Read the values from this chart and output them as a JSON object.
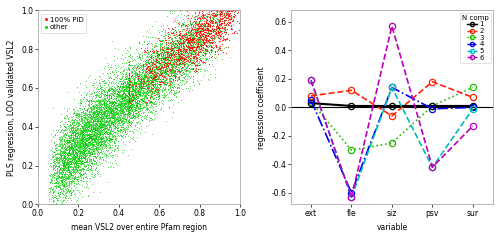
{
  "scatter_xlabel": "mean VSL2 over entire Pfam region",
  "scatter_ylabel": "PLS regression, LOO validated VSL2",
  "scatter_xlim": [
    0.0,
    1.0
  ],
  "scatter_ylim": [
    0.0,
    1.0
  ],
  "scatter_xticks": [
    0.0,
    0.2,
    0.4,
    0.6,
    0.8,
    1.0
  ],
  "scatter_yticks": [
    0.0,
    0.2,
    0.4,
    0.6,
    0.8,
    1.0
  ],
  "red_color": "#FF0000",
  "green_color": "#00CC00",
  "right_xlabel": "variable",
  "right_ylabel": "regression coefficient",
  "right_xlim": [
    -0.5,
    4.5
  ],
  "right_ylim": [
    -0.68,
    0.68
  ],
  "right_yticks": [
    -0.6,
    -0.4,
    -0.2,
    0.0,
    0.2,
    0.4,
    0.6
  ],
  "right_xtick_labels": [
    "ext",
    "fle",
    "siz",
    "psv",
    "sur"
  ],
  "right_xtick_positions": [
    0,
    1,
    2,
    3,
    4
  ],
  "legend_title": "N comp",
  "n_components": [
    1,
    2,
    3,
    4,
    5,
    6
  ],
  "comp_colors": [
    "#000000",
    "#FF2200",
    "#22BB00",
    "#0000EE",
    "#00BBBB",
    "#BB00BB"
  ],
  "comp_data": {
    "1": [
      0.03,
      0.01,
      0.01,
      0.01,
      0.01
    ],
    "2": [
      0.08,
      0.12,
      -0.06,
      0.18,
      0.07
    ],
    "3": [
      0.04,
      -0.3,
      -0.25,
      0.01,
      0.14
    ],
    "4": [
      0.05,
      -0.6,
      0.14,
      -0.01,
      0.0
    ],
    "5": [
      0.19,
      -0.63,
      0.14,
      -0.42,
      -0.01
    ],
    "6": [
      0.19,
      -0.63,
      0.57,
      -0.42,
      -0.13
    ]
  },
  "bg_color": "#FFFFFF"
}
